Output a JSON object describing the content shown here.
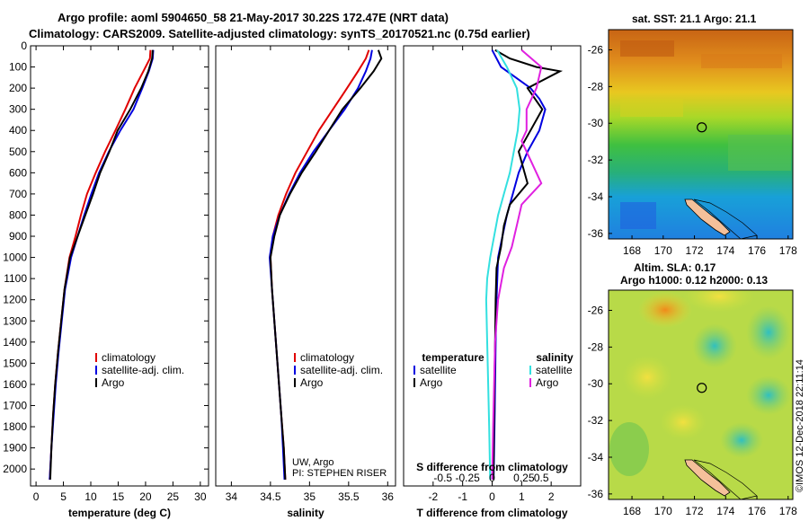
{
  "title": {
    "line1": "Argo profile: aoml 5904650_58 21-May-2017 30.22S 172.47E (NRT data)",
    "line2": "Climatology: CARS2009. Satellite-adjusted climatology: synTS_20170521.nc (0.75d earlier)"
  },
  "credit": {
    "line1": "UW, Argo",
    "line2": "PI: STEPHEN RISER"
  },
  "watermark": "©IMOS 12-Dec-2018 22:11:14",
  "colors": {
    "climatology": "#e00000",
    "satellite": "#0000e0",
    "argo": "#000000",
    "sat_salinity": "#33e0e0",
    "argo_salinity": "#e020e0"
  },
  "chart_data": [
    {
      "type": "line",
      "name": "temperature",
      "xlabel": "temperature (deg C)",
      "xlim": [
        -1,
        31.5
      ],
      "ylim": [
        0,
        2080
      ],
      "ylabel": "",
      "y_ticks": [
        0,
        100,
        200,
        300,
        400,
        500,
        600,
        700,
        800,
        900,
        1000,
        1100,
        1200,
        1300,
        1400,
        1500,
        1600,
        1700,
        1800,
        1900,
        2000
      ],
      "x_ticks": [
        0,
        5,
        10,
        15,
        20,
        25,
        30
      ],
      "legend": {
        "placement": "lower-right",
        "entries": [
          "climatology",
          "satellite-adj. clim.",
          "Argo"
        ]
      },
      "series": [
        {
          "name": "climatology",
          "color": "#e00000",
          "x": [
            20.9,
            20.8,
            19.6,
            18.0,
            16.3,
            14.5,
            12.6,
            10.9,
            9.3,
            8.2,
            7.2,
            6.1,
            5.2,
            4.6,
            4.0,
            3.5,
            3.1,
            2.8,
            2.5
          ],
          "y": [
            20,
            60,
            120,
            200,
            300,
            400,
            500,
            600,
            700,
            800,
            900,
            1000,
            1150,
            1300,
            1450,
            1600,
            1750,
            1900,
            2050
          ]
        },
        {
          "name": "satellite-adj. clim.",
          "color": "#0000e0",
          "x": [
            21.4,
            21.3,
            20.6,
            19.4,
            17.8,
            15.4,
            13.3,
            11.5,
            10.1,
            8.8,
            7.6,
            6.4,
            5.3,
            4.7,
            4.1,
            3.6,
            3.2,
            2.8,
            2.5
          ],
          "y": [
            20,
            60,
            120,
            200,
            300,
            400,
            500,
            600,
            700,
            800,
            900,
            1000,
            1150,
            1300,
            1450,
            1600,
            1750,
            1900,
            2050
          ]
        },
        {
          "name": "Argo",
          "color": "#000000",
          "x": [
            21.3,
            21.2,
            20.5,
            19.2,
            17.2,
            14.9,
            13.4,
            11.7,
            10.4,
            9.0,
            7.6,
            6.2,
            5.2,
            4.6,
            4.0,
            3.5,
            3.1,
            2.8,
            2.6
          ],
          "y": [
            20,
            60,
            120,
            200,
            300,
            400,
            500,
            600,
            700,
            800,
            900,
            1000,
            1150,
            1300,
            1450,
            1600,
            1750,
            1900,
            2050
          ]
        }
      ]
    },
    {
      "type": "line",
      "name": "salinity",
      "xlabel": "salinity",
      "xlim": [
        33.8,
        36.1
      ],
      "ylim": [
        0,
        2080
      ],
      "x_ticks": [
        34,
        34.5,
        35,
        35.5,
        36
      ],
      "legend": {
        "placement": "lower-right",
        "entries": [
          "climatology",
          "satellite-adj. clim.",
          "Argo"
        ]
      },
      "series": [
        {
          "name": "climatology",
          "color": "#e00000",
          "x": [
            35.76,
            35.72,
            35.62,
            35.48,
            35.3,
            35.12,
            34.97,
            34.82,
            34.7,
            34.6,
            34.53,
            34.5,
            34.52,
            34.55,
            34.58,
            34.61,
            34.64,
            34.67,
            34.69
          ],
          "y": [
            20,
            60,
            120,
            200,
            300,
            400,
            500,
            600,
            700,
            800,
            900,
            1000,
            1150,
            1300,
            1450,
            1600,
            1750,
            1900,
            2050
          ]
        },
        {
          "name": "satellite-adj. clim.",
          "color": "#0000e0",
          "x": [
            35.8,
            35.78,
            35.72,
            35.62,
            35.45,
            35.25,
            35.05,
            34.88,
            34.74,
            34.62,
            34.53,
            34.49,
            34.52,
            34.55,
            34.58,
            34.61,
            34.64,
            34.66,
            34.68
          ],
          "y": [
            20,
            60,
            120,
            200,
            300,
            400,
            500,
            600,
            700,
            800,
            900,
            1000,
            1150,
            1300,
            1450,
            1600,
            1750,
            1900,
            2050
          ]
        },
        {
          "name": "Argo",
          "color": "#000000",
          "x": [
            35.88,
            35.92,
            35.82,
            35.65,
            35.42,
            35.25,
            35.08,
            34.9,
            34.75,
            34.62,
            34.55,
            34.5,
            34.52,
            34.55,
            34.58,
            34.61,
            34.64,
            34.67,
            34.69
          ],
          "y": [
            20,
            60,
            120,
            200,
            300,
            400,
            500,
            600,
            700,
            800,
            900,
            1000,
            1150,
            1300,
            1450,
            1600,
            1750,
            1900,
            2050
          ]
        }
      ]
    },
    {
      "type": "line",
      "name": "difference",
      "xlabel": "T difference from climatology",
      "xlabel2": "S difference from climatology",
      "xlim": [
        -3,
        3
      ],
      "ylim": [
        0,
        2080
      ],
      "x_ticks": [
        -2,
        -1,
        0,
        1,
        2
      ],
      "x_ticks_salinity": [
        -0.5,
        -0.25,
        0,
        0.25,
        0.5
      ],
      "legend": {
        "placement": "lower",
        "temperature_title": "temperature",
        "salinity_title": "salinity",
        "entries": [
          "satellite",
          "Argo",
          "satellite",
          "Argo"
        ]
      },
      "series": [
        {
          "name": "T satellite",
          "color": "#0000e0",
          "x": [
            0.0,
            0.3,
            0.8,
            1.3,
            1.6,
            1.8,
            1.6,
            1.2,
            0.9,
            0.7,
            0.5,
            0.35,
            0.2,
            0.15,
            0.12,
            0.1,
            0.08,
            0.06,
            0.05
          ],
          "y": [
            20,
            100,
            150,
            200,
            250,
            300,
            400,
            500,
            600,
            700,
            800,
            900,
            1000,
            1200,
            1400,
            1600,
            1800,
            1950,
            2050
          ]
        },
        {
          "name": "T Argo",
          "color": "#000000",
          "x": [
            0.1,
            0.6,
            1.5,
            2.3,
            1.2,
            1.7,
            1.3,
            0.9,
            1.2,
            0.6,
            0.4,
            0.3,
            0.15,
            0.12,
            0.1,
            0.08,
            0.06,
            0.05,
            0.04
          ],
          "y": [
            20,
            60,
            100,
            120,
            200,
            300,
            400,
            500,
            650,
            750,
            850,
            950,
            1050,
            1200,
            1400,
            1600,
            1800,
            1950,
            2050
          ]
        },
        {
          "name": "S satellite",
          "color": "#33e0e0",
          "x": [
            0.05,
            0.15,
            0.25,
            0.28,
            0.26,
            0.22,
            0.18,
            0.12,
            0.06,
            0.02,
            -0.02,
            -0.05,
            -0.06,
            -0.05,
            -0.04,
            -0.03,
            -0.02
          ],
          "y": [
            20,
            100,
            200,
            300,
            400,
            500,
            600,
            700,
            800,
            900,
            1000,
            1100,
            1200,
            1400,
            1600,
            1800,
            2050
          ]
        },
        {
          "name": "S Argo",
          "color": "#e020e0",
          "x": [
            0.3,
            0.5,
            0.45,
            0.35,
            0.35,
            0.3,
            0.4,
            0.5,
            0.3,
            0.25,
            0.2,
            0.12,
            0.06,
            0.03,
            0.02,
            0.01,
            0.0
          ],
          "y": [
            20,
            100,
            200,
            300,
            400,
            450,
            550,
            650,
            750,
            850,
            950,
            1050,
            1200,
            1400,
            1600,
            1800,
            2050
          ]
        }
      ]
    },
    {
      "type": "heatmap",
      "name": "sst map",
      "title": "sat. SST: 21.1 Argo: 21.1",
      "x_ticks": [
        168,
        170,
        172,
        174,
        176,
        178
      ],
      "y_ticks": [
        -26,
        -28,
        -30,
        -32,
        -34,
        -36
      ],
      "xlim": [
        166.5,
        178.3
      ],
      "ylim": [
        -36.3,
        -24.9
      ],
      "marker": {
        "lon": 172.47,
        "lat": -30.22
      }
    },
    {
      "type": "heatmap",
      "name": "sla map",
      "title1": "Altim. SLA: 0.17",
      "title2": "Argo h1000: 0.12 h2000: 0.13",
      "x_ticks": [
        168,
        170,
        172,
        174,
        176,
        178
      ],
      "y_ticks": [
        -26,
        -28,
        -30,
        -32,
        -34,
        -36
      ],
      "xlim": [
        166.5,
        178.3
      ],
      "ylim": [
        -36.3,
        -24.9
      ],
      "marker": {
        "lon": 172.47,
        "lat": -30.22
      }
    }
  ]
}
